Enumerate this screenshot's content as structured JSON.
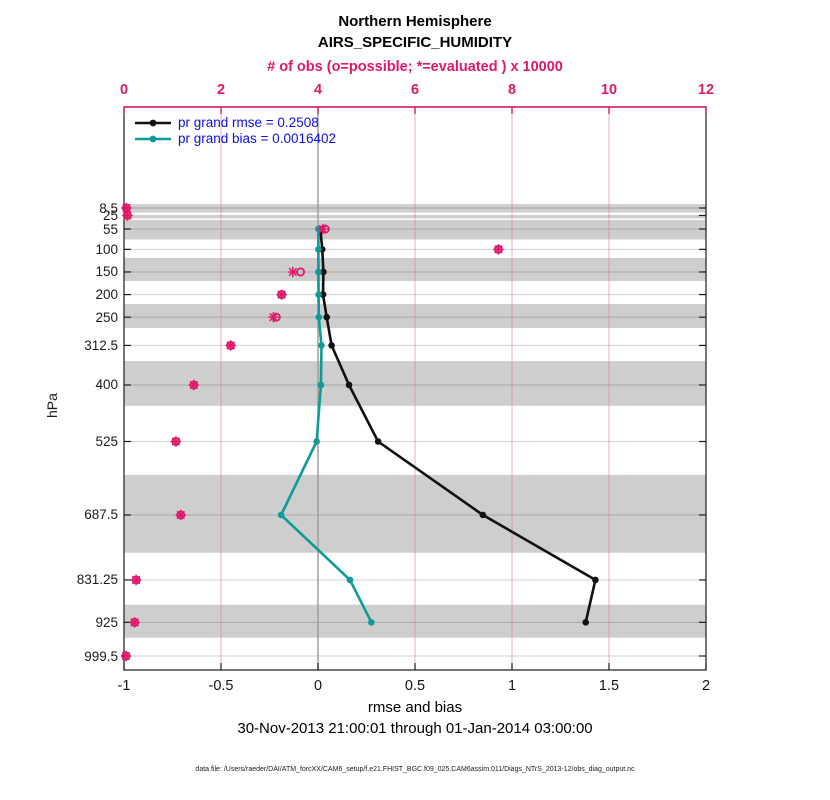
{
  "title": {
    "line1": "Northern Hemisphere",
    "line2": "AIRS_SPECIFIC_HUMIDITY"
  },
  "top_axis": {
    "label": "# of obs (o=possible; *=evaluated ) x 10000",
    "ticks": [
      0,
      2,
      4,
      6,
      8,
      10,
      12
    ],
    "range": [
      0,
      12
    ],
    "color": "#e0186b"
  },
  "bottom_axis": {
    "label": "rmse and bias",
    "ticks": [
      -1,
      -0.5,
      0,
      0.5,
      1,
      1.5,
      2
    ],
    "tick_labels": [
      "-1",
      "-0.5",
      "0",
      "0.5",
      "1",
      "1.5",
      "2"
    ],
    "range": [
      -1,
      2
    ]
  },
  "left_axis": {
    "label": "hPa",
    "ticks": [
      8.5,
      25,
      55,
      100,
      150,
      200,
      250,
      312.5,
      400,
      525,
      687.5,
      831.25,
      925,
      999.5
    ],
    "tick_labels": [
      "8.5",
      "25",
      "55",
      "100",
      "150",
      "200",
      "250",
      "312.5",
      "400",
      "525",
      "687.5",
      "831.25",
      "925",
      "999.5"
    ]
  },
  "legend": {
    "items": [
      {
        "label": "pr grand rmse = 0.2508",
        "color": "#111111"
      },
      {
        "label": "pr grand bias = 0.0016402",
        "color": "#0f9a9a"
      }
    ],
    "text_color": "#0d0df0"
  },
  "footer": {
    "timespan": "30-Nov-2013 21:00:01 through 01-Jan-2014 03:00:00",
    "datafile": "data file: /Users/raeder/DAI/ATM_forcXX/CAM6_setup/f.e21.FHIST_BGC.f09_025.CAM6assim.011/Diags_NTrS_2013-12/obs_diag_output.nc"
  },
  "chart_data": {
    "type": "line",
    "profile_orientation": "pressure-vertical",
    "ylabel": "hPa",
    "xlabel_bottom": "rmse and bias",
    "xlabel_top": "# of obs (o=possible; *=evaluated ) x 10000",
    "x_bottom_range": [
      -1,
      2
    ],
    "x_top_range": [
      0,
      12
    ],
    "y_levels_hpa": [
      8.5,
      25,
      55,
      100,
      150,
      200,
      250,
      312.5,
      400,
      525,
      687.5,
      831.25,
      925,
      999.5
    ],
    "series": [
      {
        "name": "pr grand rmse",
        "summary_value": 0.2508,
        "color": "#111111",
        "axis": "bottom",
        "points": [
          [
            55,
            0.012
          ],
          [
            100,
            0.022
          ],
          [
            150,
            0.028
          ],
          [
            200,
            0.026
          ],
          [
            250,
            0.045
          ],
          [
            312.5,
            0.07
          ],
          [
            400,
            0.16
          ],
          [
            525,
            0.31
          ],
          [
            687.5,
            0.85
          ],
          [
            831.25,
            1.43
          ],
          [
            925,
            1.38
          ]
        ]
      },
      {
        "name": "pr grand bias",
        "summary_value": 0.0016402,
        "color": "#0f9a9a",
        "axis": "bottom",
        "points": [
          [
            55,
            0.002
          ],
          [
            100,
            0.002
          ],
          [
            150,
            0.002
          ],
          [
            200,
            0.003
          ],
          [
            250,
            0.004
          ],
          [
            312.5,
            0.018
          ],
          [
            400,
            0.015
          ],
          [
            525,
            -0.007
          ],
          [
            687.5,
            -0.19
          ],
          [
            831.25,
            0.165
          ],
          [
            925,
            0.275
          ]
        ]
      }
    ],
    "obs_counts_x10000": {
      "color": "#e0186b",
      "axis": "top",
      "levels": [
        8.5,
        25,
        55,
        100,
        150,
        200,
        250,
        312.5,
        400,
        525,
        687.5,
        831.25,
        925,
        999.5
      ],
      "possible": [
        0.05,
        0.07,
        4.15,
        7.72,
        3.64,
        3.25,
        3.14,
        2.2,
        1.44,
        1.07,
        1.17,
        0.25,
        0.22,
        0.04
      ],
      "evaluated": [
        0.05,
        0.07,
        4.1,
        7.72,
        3.48,
        3.25,
        3.08,
        2.2,
        1.44,
        1.07,
        1.17,
        0.25,
        0.22,
        0.04
      ]
    },
    "gray_bands_hpa": [
      [
        0,
        18.5
      ],
      [
        26,
        31.5
      ],
      [
        35,
        78
      ],
      [
        119,
        170
      ],
      [
        221,
        274
      ],
      [
        347,
        446
      ],
      [
        599,
        771
      ],
      [
        886,
        959
      ]
    ],
    "grid": {
      "horizontal": "at-every-level-tick",
      "vertical": "at-top-axis-ticks-2-4-6-8-10",
      "zero_line": true
    },
    "colors": {
      "band_gray": "#cecece",
      "h_grid": "rgba(0,0,0,0.18)",
      "v_grid_pink": "rgba(203,120,150,0.55)",
      "zero_line": "#9b9b9b",
      "frame": "#1a1a1a",
      "top_frame_pink": "#e0186b"
    }
  }
}
